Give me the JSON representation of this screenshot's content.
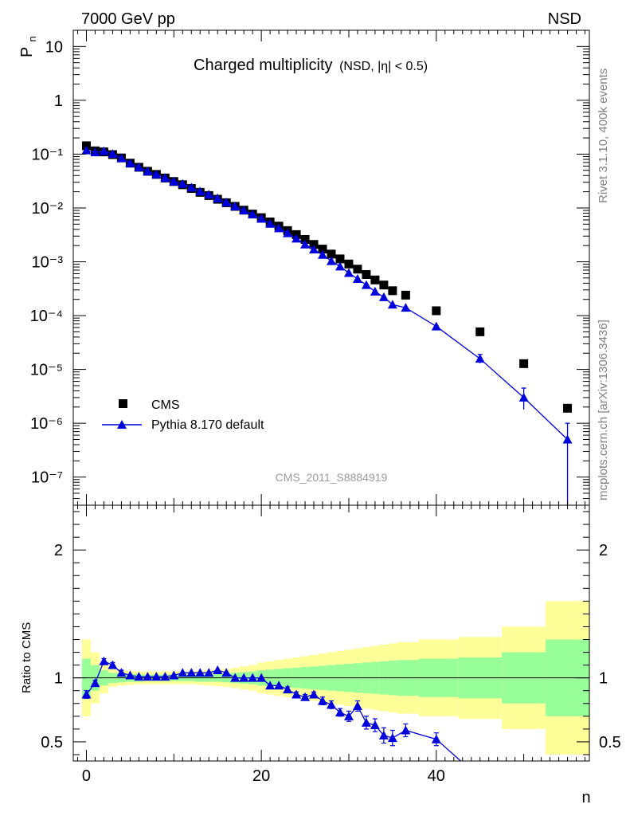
{
  "header": {
    "left": "7000 GeV pp",
    "right": "NSD"
  },
  "side_labels": {
    "rivet": "Rivet 3.1.10,  400k events",
    "mcplots": "mcplots.cern.ch [arXiv:1306.3436]"
  },
  "chart_data": {
    "type": "scatter",
    "title_main": "Charged multiplicity",
    "title_sub": "(NSD, |η| < 0.5)",
    "analysis_id": "CMS_2011_S8884919",
    "xlabel": "n",
    "ylabel": "P",
    "ylabel_sub": "n",
    "ratio_ylabel": "Ratio to CMS",
    "xlim": [
      -1.5,
      57.5
    ],
    "ylim": [
      3e-08,
      20
    ],
    "yscale": "log",
    "ratio_ylim": [
      0.35,
      2.35
    ],
    "x_ticks": [
      "0",
      "20",
      "40"
    ],
    "y_ticks": [
      "10",
      "1",
      "10⁻¹",
      "10⁻²",
      "10⁻³",
      "10⁻⁴",
      "10⁻⁵",
      "10⁻⁶",
      "10⁻⁷"
    ],
    "ratio_ticks": [
      "0.5",
      "1",
      "2"
    ],
    "legend_position": "bottom-left",
    "series": [
      {
        "name": "CMS",
        "marker": "square",
        "color": "#000000",
        "x": [
          0,
          1,
          2,
          3,
          4,
          5,
          6,
          7,
          8,
          9,
          10,
          11,
          12,
          13,
          14,
          15,
          16,
          17,
          18,
          19,
          20,
          21,
          22,
          23,
          24,
          25,
          26,
          27,
          28,
          29,
          30,
          31,
          32,
          33,
          34,
          35,
          36.5,
          40,
          45,
          50,
          55
        ],
        "y": [
          0.143,
          0.115,
          0.11,
          0.098,
          0.085,
          0.068,
          0.057,
          0.048,
          0.042,
          0.036,
          0.031,
          0.027,
          0.023,
          0.0195,
          0.017,
          0.0145,
          0.0125,
          0.0107,
          0.0091,
          0.0077,
          0.0066,
          0.0055,
          0.0046,
          0.0038,
          0.0032,
          0.0026,
          0.0021,
          0.00172,
          0.00139,
          0.00113,
          0.00091,
          0.00073,
          0.00058,
          0.00046,
          0.00037,
          0.00029,
          0.00024,
          0.000123,
          5e-05,
          1.28e-05,
          1.9e-06
        ]
      },
      {
        "name": "Pythia 8.170 default",
        "marker": "triangle",
        "color": "#0000dd",
        "x": [
          0,
          1,
          2,
          3,
          4,
          5,
          6,
          7,
          8,
          9,
          10,
          11,
          12,
          13,
          14,
          15,
          16,
          17,
          18,
          19,
          20,
          21,
          22,
          23,
          24,
          25,
          26,
          27,
          28,
          29,
          30,
          31,
          32,
          33,
          34,
          35,
          36.5,
          40,
          45,
          50,
          55
        ],
        "y": [
          0.118,
          0.108,
          0.114,
          0.101,
          0.084,
          0.068,
          0.057,
          0.048,
          0.042,
          0.036,
          0.031,
          0.028,
          0.024,
          0.0203,
          0.0177,
          0.0151,
          0.0127,
          0.0107,
          0.009,
          0.0076,
          0.0063,
          0.0051,
          0.0042,
          0.0034,
          0.0027,
          0.0021,
          0.0017,
          0.00135,
          0.00103,
          0.00082,
          0.00062,
          0.00048,
          0.00037,
          0.00028,
          0.00022,
          0.00016,
          0.00014,
          6.3e-05,
          1.58e-05,
          3e-06,
          5e-07
        ]
      }
    ],
    "ratio": {
      "x": [
        0,
        1,
        2,
        3,
        4,
        5,
        6,
        7,
        8,
        9,
        10,
        11,
        12,
        13,
        14,
        15,
        16,
        17,
        18,
        19,
        20,
        21,
        22,
        23,
        24,
        25,
        26,
        27,
        28,
        29,
        30,
        31,
        32,
        33,
        34,
        35,
        36.5,
        40,
        42.8
      ],
      "y": [
        0.87,
        0.96,
        1.13,
        1.1,
        1.04,
        1.02,
        1.01,
        1.01,
        1.01,
        1.01,
        1.02,
        1.04,
        1.04,
        1.04,
        1.04,
        1.06,
        1.04,
        1.0,
        1.0,
        1.0,
        1.0,
        0.94,
        0.94,
        0.91,
        0.87,
        0.85,
        0.87,
        0.82,
        0.79,
        0.73,
        0.7,
        0.78,
        0.65,
        0.63,
        0.55,
        0.53,
        0.59,
        0.52,
        0.35
      ],
      "err": [
        0.03,
        0.02,
        0.02,
        0.02,
        0.02,
        0.01,
        0.01,
        0.01,
        0.01,
        0.01,
        0.01,
        0.01,
        0.01,
        0.01,
        0.01,
        0.01,
        0.01,
        0.01,
        0.01,
        0.01,
        0.01,
        0.01,
        0.01,
        0.02,
        0.02,
        0.02,
        0.02,
        0.03,
        0.03,
        0.03,
        0.04,
        0.04,
        0.05,
        0.05,
        0.06,
        0.06,
        0.05,
        0.05,
        0
      ],
      "band_edges": [
        -0.5,
        0.5,
        1.5,
        2.5,
        3.5,
        4.5,
        5.5,
        6.5,
        7.5,
        8.5,
        9.5,
        10.5,
        11.5,
        12.5,
        13.5,
        14.5,
        15.5,
        16.5,
        17.5,
        18.5,
        19.5,
        20.5,
        21.5,
        22.5,
        23.5,
        24.5,
        25.5,
        26.5,
        27.5,
        28.5,
        29.5,
        30.5,
        31.5,
        32.5,
        33.5,
        34.5,
        35.5,
        38,
        42.5,
        47.5,
        52.5,
        57.5
      ],
      "green_halfwidth": [
        0.15,
        0.1,
        0.06,
        0.04,
        0.035,
        0.03,
        0.03,
        0.025,
        0.025,
        0.025,
        0.025,
        0.025,
        0.025,
        0.03,
        0.03,
        0.03,
        0.035,
        0.04,
        0.045,
        0.05,
        0.06,
        0.065,
        0.07,
        0.075,
        0.08,
        0.085,
        0.09,
        0.095,
        0.1,
        0.105,
        0.11,
        0.115,
        0.12,
        0.125,
        0.13,
        0.135,
        0.14,
        0.15,
        0.16,
        0.2,
        0.3,
        0.75
      ],
      "yellow_halfwidth": [
        0.3,
        0.2,
        0.12,
        0.07,
        0.06,
        0.055,
        0.05,
        0.05,
        0.05,
        0.05,
        0.05,
        0.05,
        0.05,
        0.055,
        0.06,
        0.065,
        0.07,
        0.08,
        0.09,
        0.1,
        0.12,
        0.13,
        0.14,
        0.15,
        0.16,
        0.17,
        0.18,
        0.19,
        0.2,
        0.21,
        0.22,
        0.23,
        0.24,
        0.25,
        0.26,
        0.27,
        0.28,
        0.3,
        0.32,
        0.4,
        0.6,
        1.2
      ]
    }
  }
}
